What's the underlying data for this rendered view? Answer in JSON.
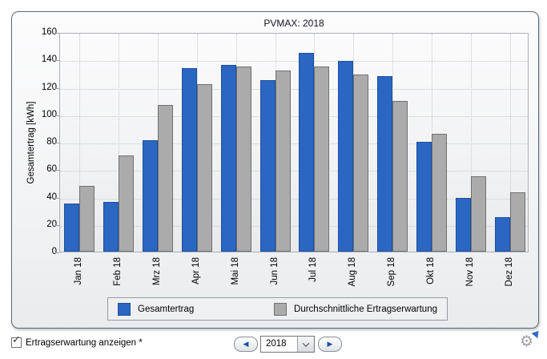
{
  "chart_data": {
    "type": "bar",
    "title": "PVMAX: 2018",
    "xlabel": "",
    "ylabel": "Gesamtertrag [kWh]",
    "ylim": [
      0,
      160
    ],
    "ytick_step": 20,
    "grid": true,
    "legend_position": "bottom",
    "categories": [
      "Jan 18",
      "Feb 18",
      "Mrz 18",
      "Apr 18",
      "Mai 18",
      "Jun 18",
      "Jul 18",
      "Aug 18",
      "Sep 18",
      "Okt 18",
      "Nov 18",
      "Dez 18"
    ],
    "series": [
      {
        "name": "Gesamtertrag",
        "color": "#2b66c3",
        "border_color": "#1d4f9c",
        "values": [
          35,
          36,
          81,
          134,
          136,
          125,
          145,
          139,
          128,
          80,
          39,
          25
        ]
      },
      {
        "name": "Durchschnittliche Ertragserwartung",
        "color": "#ababab",
        "border_color": "#707070",
        "values": [
          48,
          70,
          107,
          122,
          135,
          132,
          135,
          129,
          110,
          86,
          55,
          43
        ]
      }
    ]
  },
  "controls": {
    "checkbox_label": "Ertragserwartung anzeigen *",
    "checkbox_checked": true,
    "year_value": "2018"
  },
  "icons": {
    "prev": "◀",
    "next": "▶",
    "gear": "⚙",
    "check": "✓"
  }
}
